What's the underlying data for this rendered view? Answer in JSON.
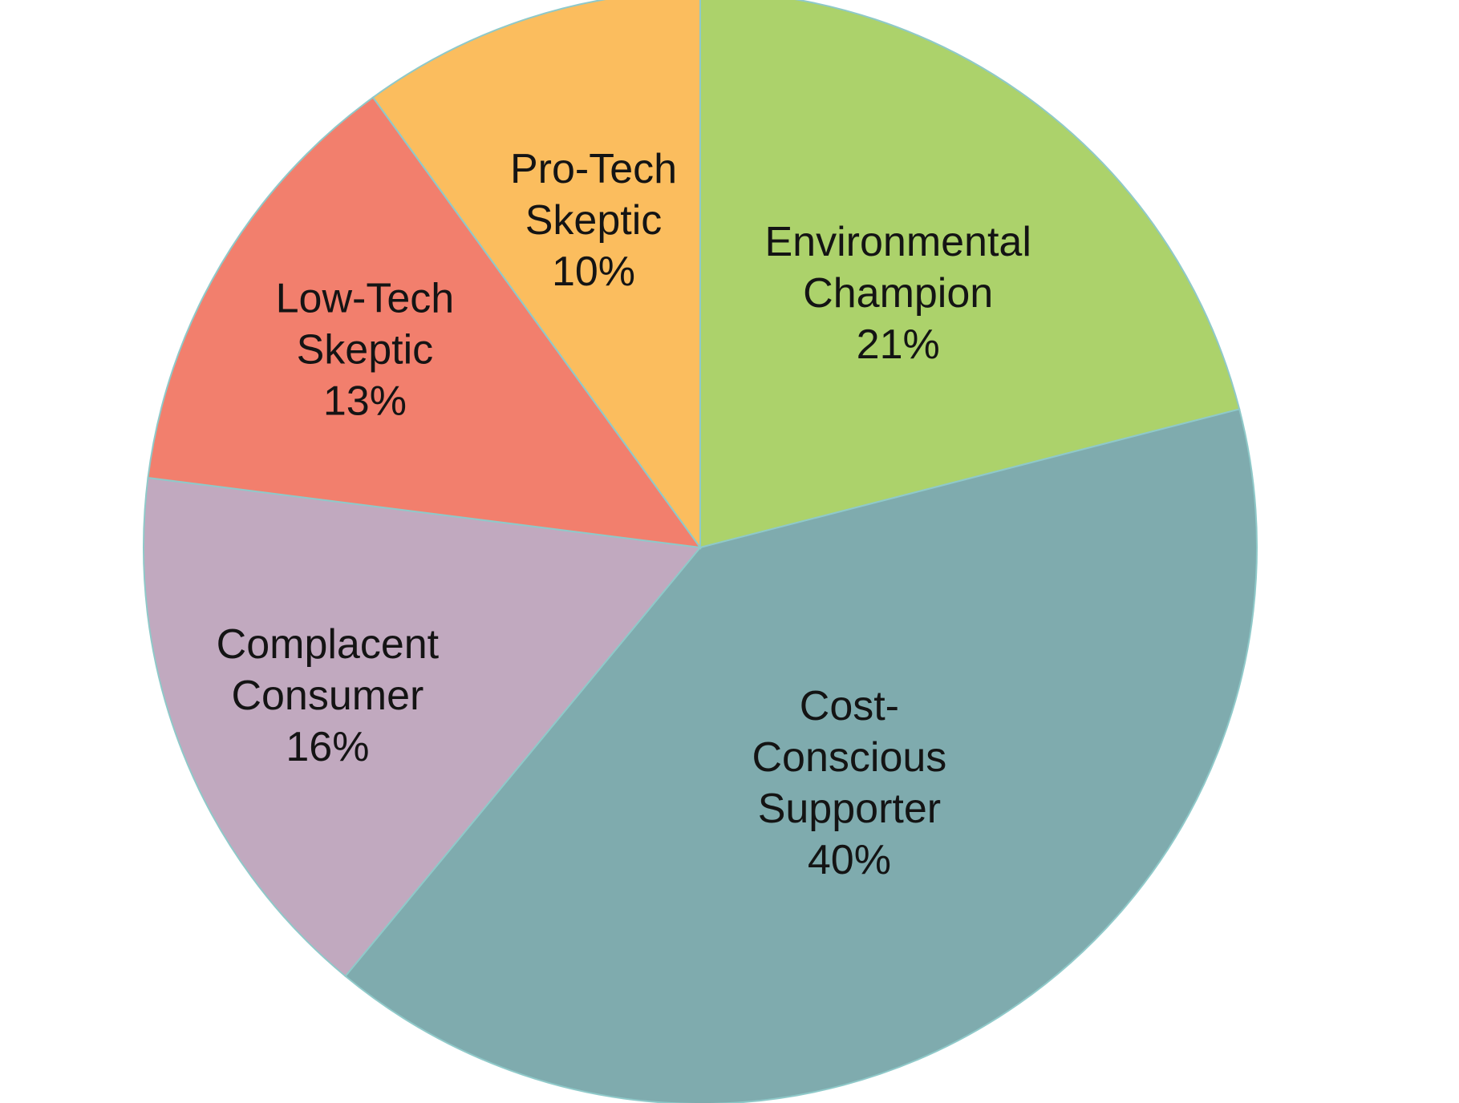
{
  "chart_data": {
    "type": "pie",
    "start_angle_deg": 0,
    "direction": "clockwise",
    "slices": [
      {
        "label_lines": [
          "Environmental",
          "Champion"
        ],
        "value_label": "21%",
        "value": 21,
        "color": "#acd26b"
      },
      {
        "label_lines": [
          "Cost-",
          "Conscious",
          "Supporter"
        ],
        "value_label": "40%",
        "value": 40,
        "color": "#7fabae"
      },
      {
        "label_lines": [
          "Complacent",
          "Consumer"
        ],
        "value_label": "16%",
        "value": 16,
        "color": "#c1a9bf"
      },
      {
        "label_lines": [
          "Low-Tech",
          "Skeptic"
        ],
        "value_label": "13%",
        "value": 13,
        "color": "#f27f6d"
      },
      {
        "label_lines": [
          "Pro-Tech",
          "Skeptic"
        ],
        "value_label": "10%",
        "value": 10,
        "color": "#fbbd5e"
      }
    ]
  }
}
